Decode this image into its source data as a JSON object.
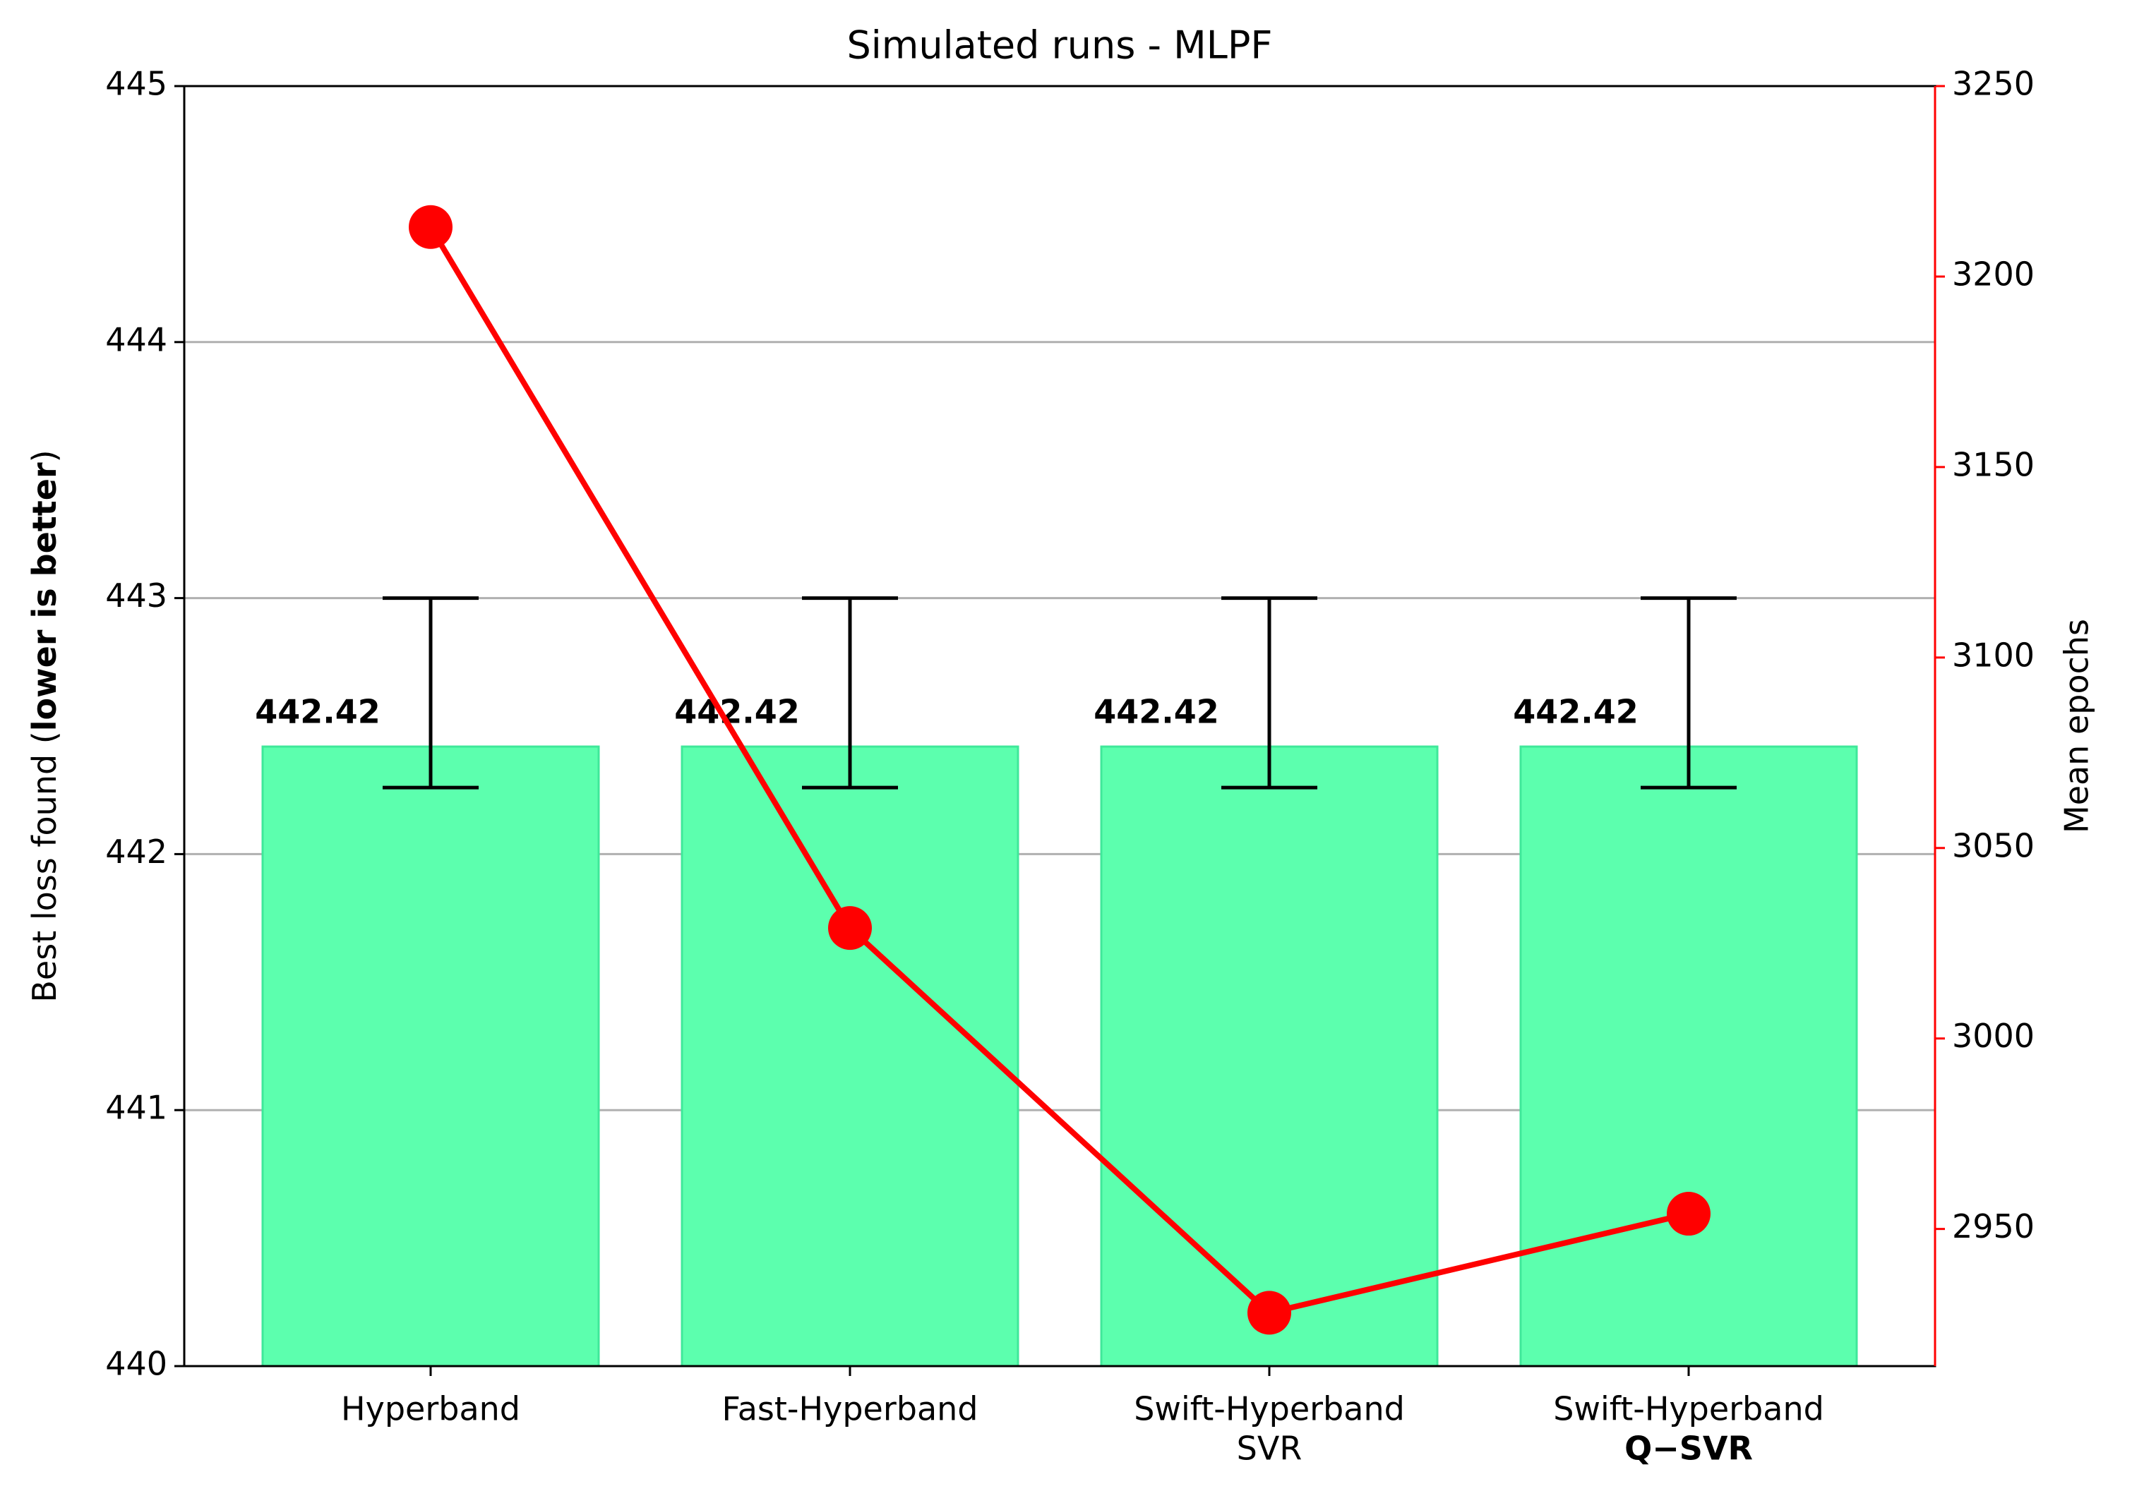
{
  "chart_data": {
    "type": "bar_line",
    "title": "Simulated runs - MLPF",
    "ylabel": {
      "start": "Best loss found (",
      "bold": "lower is better",
      "end": ")"
    },
    "y2label": "Mean epochs",
    "categories": [
      "Hyperband",
      "Fast-Hyperband",
      "Swift-Hyperband",
      "Swift-Hyperband"
    ],
    "category_sublabels": [
      null,
      null,
      "SVR",
      "Q−SVR"
    ],
    "sublabel_bold": [
      false,
      false,
      false,
      true
    ],
    "series": [
      {
        "name": "Best loss",
        "color": "#5cffae",
        "edgecolor": "#3fe89a",
        "values": [
          442.42,
          442.42,
          442.42,
          442.42
        ],
        "errors_minus": [
          0.16,
          0.16,
          0.16,
          0.16
        ],
        "errors_plus": [
          0.58,
          0.58,
          0.58,
          0.58
        ]
      },
      {
        "name": "Mean epochs",
        "color": "#ff0000",
        "axis": "y2",
        "values": [
          3213,
          3029,
          2928,
          2954
        ]
      }
    ],
    "ylim": [
      440,
      445
    ],
    "yticks": [
      440,
      441,
      442,
      443,
      444,
      445
    ],
    "y2lim": [
      2914,
      3250
    ],
    "y2ticks": [
      2950,
      3000,
      3050,
      3100,
      3150,
      3200,
      3250
    ],
    "y2color": "#ff0000",
    "grid": true
  }
}
